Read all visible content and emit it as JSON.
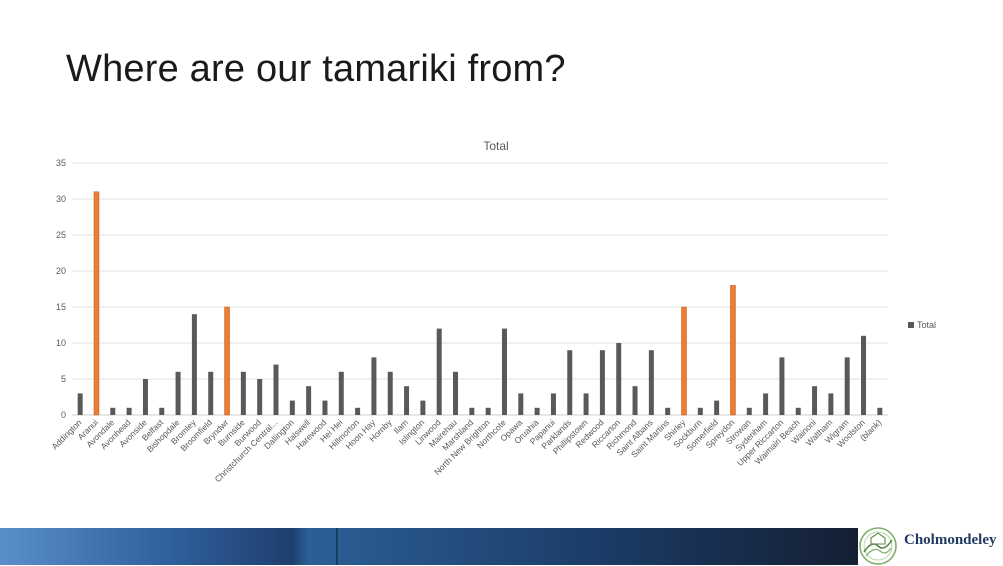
{
  "slide": {
    "title": "Where are our tamariki from?"
  },
  "logo": {
    "name": "Cholmondeley",
    "tagline": ""
  },
  "colors": {
    "bar": "#595959",
    "highlight": "#ED7D31",
    "grid": "#d9d9d9",
    "text": "#595959"
  },
  "chart_data": {
    "type": "bar",
    "title": "Total",
    "xlabel": "",
    "ylabel": "",
    "ylim": [
      0,
      35
    ],
    "yticks": [
      0,
      5,
      10,
      15,
      20,
      25,
      30,
      35
    ],
    "grid": true,
    "legend": {
      "position": "right",
      "entries": [
        "Total"
      ]
    },
    "categories": [
      "Addington",
      "Aranui",
      "Avondale",
      "Avonhead",
      "Avonside",
      "Belfast",
      "Bishopdale",
      "Bromley",
      "Broomfield",
      "Bryndwr",
      "Burnside",
      "Burwood",
      "Christchurch Central...",
      "Dallington",
      "Halswell",
      "Harewood",
      "Hei Hei",
      "Hillmorton",
      "Hoon Hay",
      "Hornby",
      "Ilam",
      "Islington",
      "Linwood",
      "Mairehau",
      "Marshland",
      "North New Brighton",
      "Northcote",
      "Opawa",
      "Oruahia",
      "Papanui",
      "Parklands",
      "Phillipstown",
      "Redwood",
      "Riccarton",
      "Richmond",
      "Saint Albans",
      "Saint Martins",
      "Shirley",
      "Sockburn",
      "Somerfield",
      "Spreydon",
      "Strowan",
      "Sydenham",
      "Upper Riccarton",
      "Waimairi Beach",
      "Wainoni",
      "Waltham",
      "Wigram",
      "Woolston",
      "(blank)"
    ],
    "series": [
      {
        "name": "Total",
        "values": [
          3,
          31,
          1,
          1,
          5,
          1,
          6,
          14,
          6,
          15,
          6,
          5,
          7,
          2,
          4,
          2,
          6,
          1,
          8,
          6,
          4,
          2,
          12,
          6,
          1,
          1,
          12,
          3,
          1,
          3,
          9,
          3,
          9,
          10,
          4,
          9,
          1,
          15,
          1,
          2,
          18,
          1,
          3,
          8,
          1,
          4,
          3,
          8,
          11,
          1
        ],
        "highlight": [
          "Aranui",
          "Bryndwr",
          "Shirley",
          "Spreydon"
        ]
      }
    ]
  }
}
